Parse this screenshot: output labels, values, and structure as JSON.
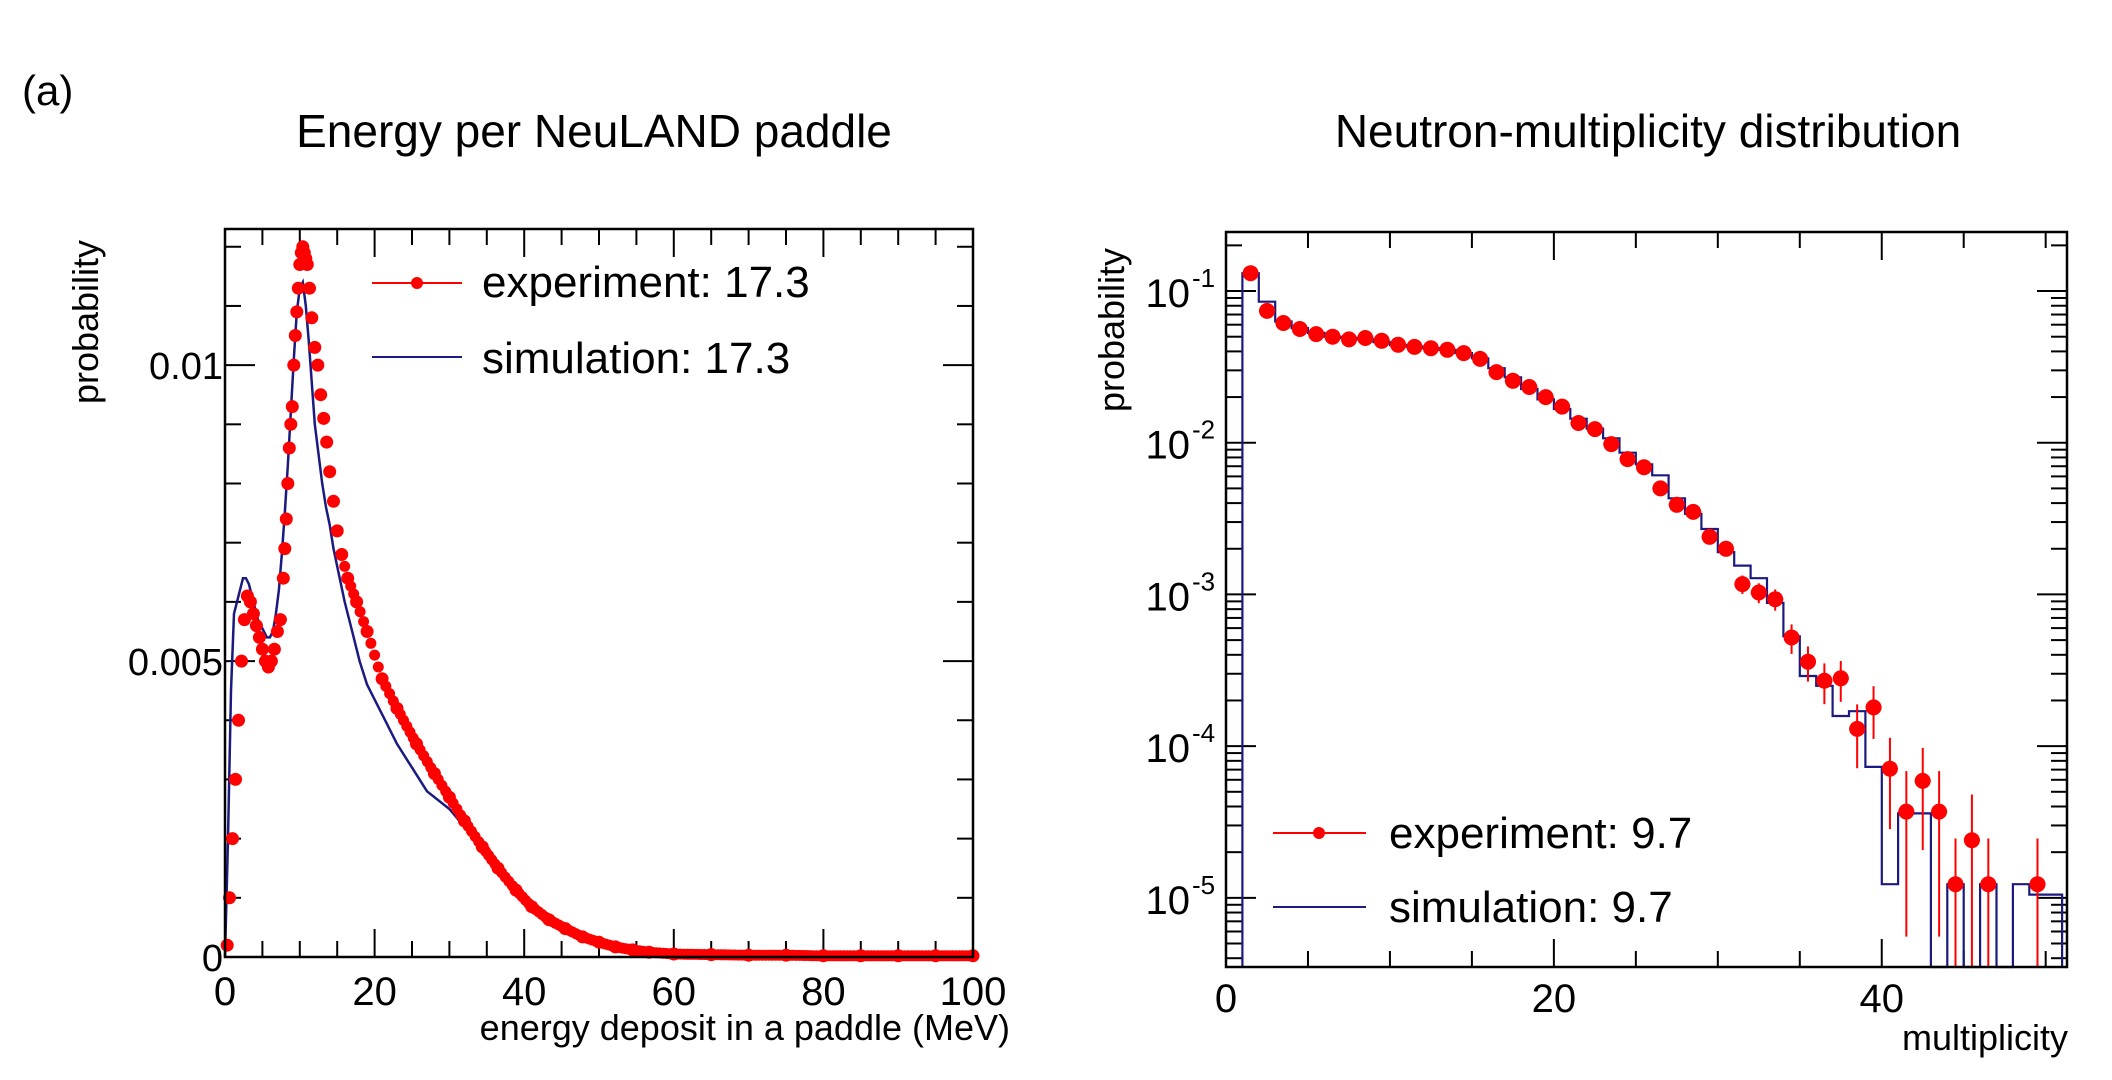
{
  "panel_label": "(a)",
  "chart_data": [
    {
      "type": "line",
      "title": "Energy per NeuLAND paddle",
      "xlabel": "energy deposit in a paddle (MeV)",
      "ylabel": "probability",
      "xlim": [
        0,
        100
      ],
      "ylim": [
        0,
        0.0123
      ],
      "yscale": "linear",
      "xticks": [
        0,
        20,
        40,
        60,
        80,
        100
      ],
      "xtick_labels": [
        "0",
        "20",
        "40",
        "60",
        "80",
        "100"
      ],
      "yticks": [
        0,
        0.005,
        0.01
      ],
      "ytick_labels": [
        "0",
        "0.005",
        "0.01"
      ],
      "legend_position": "top-right",
      "series": [
        {
          "name": "experiment: 17.3",
          "style": "markers",
          "color": "#ff0000",
          "x": [
            0.3,
            0.6,
            1.0,
            1.4,
            1.8,
            2.2,
            2.6,
            3.0,
            3.4,
            3.8,
            4.2,
            4.6,
            5.0,
            5.4,
            5.8,
            6.2,
            6.6,
            7.0,
            7.4,
            7.8,
            8.0,
            8.2,
            8.4,
            8.6,
            8.8,
            9.0,
            9.2,
            9.4,
            9.6,
            9.8,
            10.0,
            10.2,
            10.4,
            10.6,
            10.8,
            11.0,
            11.3,
            11.6,
            12.0,
            12.4,
            12.8,
            13.2,
            13.6,
            14.0,
            14.5,
            15.0,
            15.6,
            16.4,
            17.6,
            19.0,
            21.0,
            23.0,
            25.6,
            28.0,
            30.0,
            32.0,
            34.4,
            36.5,
            38.9,
            41.0,
            43.3,
            45.5,
            47.8,
            50.0,
            52.2,
            54.5,
            56.7,
            60.0,
            65.0,
            70.0,
            75.0,
            80.0,
            85.0,
            90.0,
            95.0,
            100.0
          ],
          "y": [
            0.0002,
            0.001,
            0.002,
            0.003,
            0.004,
            0.005,
            0.0057,
            0.0061,
            0.006,
            0.0058,
            0.0056,
            0.0054,
            0.0052,
            0.005,
            0.0049,
            0.005,
            0.0052,
            0.0055,
            0.0057,
            0.0064,
            0.0069,
            0.0074,
            0.008,
            0.0086,
            0.009,
            0.0093,
            0.01,
            0.0105,
            0.0109,
            0.0113,
            0.0117,
            0.0119,
            0.012,
            0.0119,
            0.0118,
            0.0117,
            0.0113,
            0.0108,
            0.0103,
            0.01,
            0.0095,
            0.0091,
            0.0087,
            0.0082,
            0.0077,
            0.0072,
            0.0068,
            0.0064,
            0.006,
            0.0055,
            0.0047,
            0.0042,
            0.0036,
            0.0031,
            0.0027,
            0.0023,
            0.00186,
            0.0015,
            0.00113,
            0.00085,
            0.00063,
            0.00048,
            0.00034,
            0.00025,
            0.00017,
            0.00012,
            8e-05,
            5e-05,
            4e-05,
            3e-05,
            3e-05,
            2e-05,
            2e-05,
            2e-05,
            2e-05,
            2e-05
          ]
        },
        {
          "name": "simulation: 17.3",
          "style": "step",
          "color": "#1a1a80",
          "x": [
            0.0,
            0.4,
            0.8,
            1.2,
            1.6,
            2.0,
            2.4,
            2.8,
            3.2,
            3.6,
            4.0,
            4.4,
            4.8,
            5.2,
            5.6,
            6.0,
            6.4,
            6.8,
            7.2,
            7.6,
            8.0,
            8.4,
            8.8,
            9.2,
            9.6,
            10.0,
            10.4,
            10.8,
            11.2,
            11.6,
            12.0,
            12.5,
            13.0,
            13.5,
            14.0,
            14.5,
            15.0,
            16.0,
            17.0,
            18.0,
            19.0,
            21.0,
            23.0,
            25.0,
            27.0,
            30.0,
            32.0,
            34.4,
            36.5,
            38.9,
            41.0,
            43.3,
            45.5,
            47.8,
            50.0,
            52.2,
            54.5,
            56.7,
            60.0,
            65.0,
            70.0,
            80.0,
            90.0,
            100.0
          ],
          "y": [
            0.0,
            0.002,
            0.0045,
            0.0058,
            0.006,
            0.0062,
            0.0064,
            0.0064,
            0.0063,
            0.0061,
            0.0059,
            0.0057,
            0.0056,
            0.0055,
            0.0054,
            0.0054,
            0.0055,
            0.0058,
            0.0062,
            0.0068,
            0.0075,
            0.0083,
            0.0092,
            0.0101,
            0.0109,
            0.0113,
            0.0114,
            0.011,
            0.0104,
            0.0097,
            0.009,
            0.0085,
            0.008,
            0.0076,
            0.0073,
            0.0069,
            0.0066,
            0.006,
            0.0055,
            0.005,
            0.0046,
            0.0041,
            0.0036,
            0.0032,
            0.0028,
            0.0025,
            0.0022,
            0.00185,
            0.0015,
            0.00115,
            0.00088,
            0.00066,
            0.0005,
            0.00037,
            0.00027,
            0.00019,
            0.00013,
            9e-05,
            6e-05,
            4e-05,
            3e-05,
            2e-05,
            2e-05,
            2e-05
          ]
        }
      ]
    },
    {
      "type": "line",
      "title": "Neutron-multiplicity distribution",
      "xlabel": "multiplicity",
      "ylabel": "probability",
      "xlim": [
        0,
        51.3
      ],
      "ylim": [
        3.5e-06,
        0.245
      ],
      "yscale": "log",
      "xticks": [
        0,
        20,
        40
      ],
      "xtick_labels": [
        "0",
        "20",
        "40"
      ],
      "yticks": [
        0.1,
        0.01,
        0.001,
        0.0001,
        1e-05
      ],
      "ytick_labels": [
        {
          "base": "10",
          "exp": "-1"
        },
        {
          "base": "10",
          "exp": "-2"
        },
        {
          "base": "10",
          "exp": "-3"
        },
        {
          "base": "10",
          "exp": "-4"
        },
        {
          "base": "10",
          "exp": "-5"
        }
      ],
      "legend_position": "bottom-left",
      "series": [
        {
          "name": "experiment: 9.7",
          "style": "markers-with-errorbars",
          "color": "#ff0000",
          "x": [
            1.5,
            2.5,
            3.5,
            4.5,
            5.5,
            6.5,
            7.5,
            8.5,
            9.5,
            10.5,
            11.5,
            12.5,
            13.5,
            14.5,
            15.5,
            16.5,
            17.5,
            18.5,
            19.5,
            20.5,
            21.5,
            22.5,
            23.5,
            24.5,
            25.5,
            26.5,
            27.5,
            28.5,
            29.5,
            30.5,
            31.5,
            32.5,
            33.5,
            34.5,
            35.5,
            36.5,
            37.5,
            38.5,
            39.5,
            40.5,
            41.5,
            42.5,
            43.5,
            44.5,
            45.5,
            46.5,
            49.5
          ],
          "y": [
            0.131,
            0.074,
            0.0616,
            0.0562,
            0.052,
            0.05,
            0.048,
            0.049,
            0.047,
            0.0442,
            0.0428,
            0.042,
            0.041,
            0.039,
            0.0357,
            0.0292,
            0.0256,
            0.0233,
            0.02,
            0.0173,
            0.0135,
            0.0123,
            0.0098,
            0.0078,
            0.0069,
            0.005,
            0.0039,
            0.0035,
            0.0024,
            0.002,
            0.00117,
            0.00103,
            0.00093,
            0.00052,
            0.00036,
            0.00027,
            0.00028,
            0.00013,
            0.00018,
            7.1e-05,
            3.7e-05,
            5.9e-05,
            3.7e-05,
            1.23e-05,
            2.4e-05,
            1.23e-05,
            1.23e-05
          ],
          "yerr_rel": [
            0.02,
            0.02,
            0.02,
            0.02,
            0.02,
            0.02,
            0.02,
            0.02,
            0.02,
            0.02,
            0.02,
            0.02,
            0.02,
            0.02,
            0.02,
            0.03,
            0.03,
            0.03,
            0.03,
            0.03,
            0.04,
            0.04,
            0.05,
            0.05,
            0.06,
            0.07,
            0.08,
            0.08,
            0.1,
            0.11,
            0.14,
            0.15,
            0.16,
            0.22,
            0.26,
            0.3,
            0.3,
            0.45,
            0.38,
            0.6,
            0.85,
            0.65,
            0.85,
            1.0,
            1.0,
            1.0,
            1.0
          ]
        },
        {
          "name": "simulation: 9.7",
          "style": "step",
          "color": "#1a1a80",
          "x": [
            1.5,
            2.5,
            3.5,
            4.5,
            5.5,
            6.5,
            7.5,
            8.5,
            9.5,
            10.5,
            11.5,
            12.5,
            13.5,
            14.5,
            15.5,
            16.5,
            17.5,
            18.5,
            19.5,
            20.5,
            21.5,
            22.5,
            23.5,
            24.5,
            25.5,
            26.5,
            27.5,
            28.5,
            29.5,
            30.5,
            31.5,
            32.5,
            33.5,
            34.5,
            35.5,
            36.5,
            37.5,
            38.5,
            39.5,
            40.5,
            41.5,
            42.5,
            43.5,
            44.5,
            45.5,
            46.5,
            47.5,
            48.5,
            49.5,
            50.5
          ],
          "y": [
            0.131,
            0.085,
            0.063,
            0.057,
            0.053,
            0.05,
            0.049,
            0.048,
            0.046,
            0.044,
            0.043,
            0.042,
            0.041,
            0.039,
            0.036,
            0.031,
            0.027,
            0.0226,
            0.0193,
            0.0167,
            0.0144,
            0.0124,
            0.0107,
            0.0086,
            0.0072,
            0.0061,
            0.0043,
            0.0034,
            0.0027,
            0.0019,
            0.00155,
            0.00128,
            0.00088,
            0.00053,
            0.00029,
            0.00025,
            0.000158,
            0.00017,
            7.3e-05,
            1.23e-05,
            3.6e-05,
            3.6e-05,
            0,
            1.23e-05,
            0,
            1.23e-05,
            0,
            1.23e-05,
            1.05e-05,
            1.05e-05
          ]
        }
      ]
    }
  ]
}
